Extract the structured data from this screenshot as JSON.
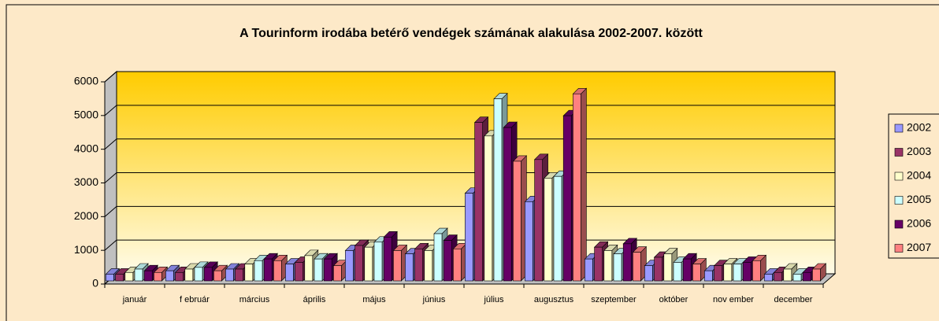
{
  "chart_data": {
    "type": "bar3d",
    "title": "A Tourinform irodába betérő vendégek számának alakulása 2002-2007. között",
    "categories": [
      "január",
      "f ebruár",
      "március",
      "április",
      "május",
      "június",
      "július",
      "augusztus",
      "szeptember",
      "október",
      "nov ember",
      "december"
    ],
    "series": [
      {
        "name": "2002",
        "color": "#9999ff",
        "values": [
          200,
          300,
          350,
          500,
          900,
          800,
          2600,
          2350,
          650,
          450,
          300,
          200
        ]
      },
      {
        "name": "2003",
        "color": "#993366",
        "values": [
          200,
          250,
          350,
          550,
          1050,
          950,
          4700,
          3600,
          1000,
          700,
          450,
          250
        ]
      },
      {
        "name": "2004",
        "color": "#ffffcc",
        "values": [
          250,
          350,
          500,
          750,
          1000,
          900,
          4300,
          3050,
          900,
          800,
          500,
          350
        ]
      },
      {
        "name": "2005",
        "color": "#ccffff",
        "values": [
          350,
          400,
          600,
          650,
          1150,
          1400,
          5400,
          3100,
          800,
          550,
          500,
          200
        ]
      },
      {
        "name": "2006",
        "color": "#660066",
        "values": [
          300,
          400,
          650,
          650,
          1300,
          1200,
          4550,
          4900,
          1100,
          650,
          550,
          250
        ]
      },
      {
        "name": "2007",
        "color": "#ff8080",
        "values": [
          250,
          300,
          600,
          450,
          900,
          950,
          3550,
          5550,
          850,
          500,
          600,
          350
        ]
      }
    ],
    "ylim": [
      0,
      6000
    ],
    "yticks": [
      0,
      1000,
      2000,
      3000,
      4000,
      5000,
      6000
    ],
    "grid": true,
    "legend": "right"
  }
}
